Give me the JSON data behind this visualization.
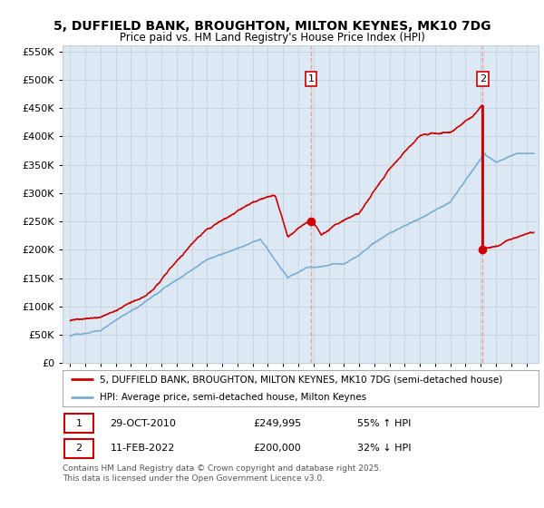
{
  "title": "5, DUFFIELD BANK, BROUGHTON, MILTON KEYNES, MK10 7DG",
  "subtitle": "Price paid vs. HM Land Registry's House Price Index (HPI)",
  "legend_line1": "5, DUFFIELD BANK, BROUGHTON, MILTON KEYNES, MK10 7DG (semi-detached house)",
  "legend_line2": "HPI: Average price, semi-detached house, Milton Keynes",
  "annotation1_date": "29-OCT-2010",
  "annotation1_price": "£249,995",
  "annotation1_pct": "55% ↑ HPI",
  "annotation2_date": "11-FEB-2022",
  "annotation2_price": "£200,000",
  "annotation2_pct": "32% ↓ HPI",
  "footer": "Contains HM Land Registry data © Crown copyright and database right 2025.\nThis data is licensed under the Open Government Licence v3.0.",
  "red_color": "#cc0000",
  "blue_color": "#7aafd4",
  "marker_color": "#cc0000",
  "shade_color": "#dce9f5",
  "bg_color": "#ffffff",
  "grid_color": "#c8d0d8",
  "chart_bg": "#dce9f5",
  "ylim": [
    0,
    560000
  ],
  "yticks": [
    0,
    50000,
    100000,
    150000,
    200000,
    250000,
    300000,
    350000,
    400000,
    450000,
    500000,
    550000
  ],
  "sale1_x": 2010.83,
  "sale1_y": 249995,
  "sale2_x": 2022.12,
  "sale2_y": 200000,
  "sale2_peak_y": 453000,
  "xmin": 1994.5,
  "xmax": 2025.8
}
